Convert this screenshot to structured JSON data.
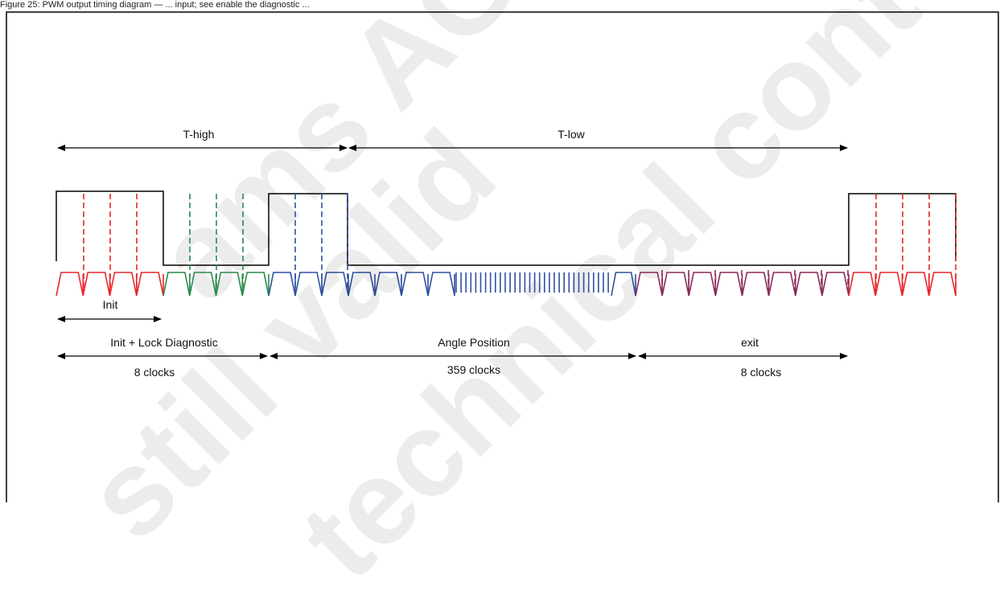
{
  "caption": "Figure 25: PWM output timing diagram — ... input; see enable the diagnostic ...",
  "watermarks": [
    "ams AG",
    "technical content",
    "still valid"
  ],
  "labels": {
    "t_high": "T-high",
    "t_low": "T-low",
    "init": "Init",
    "init_lock": "Init + Lock Diagnostic",
    "angle_position": "Angle Position",
    "exit": "exit",
    "clocks_8_left": "8 clocks",
    "clocks_359": "359 clocks",
    "clocks_8_right": "8 clocks"
  },
  "colors": {
    "signal": "#000000",
    "init_clock": "#e8262a",
    "lock_clock": "#2a8a4a",
    "angle_clock": "#2f50a0",
    "exit_clock": "#8a2a5a",
    "frame": "#000000"
  }
}
